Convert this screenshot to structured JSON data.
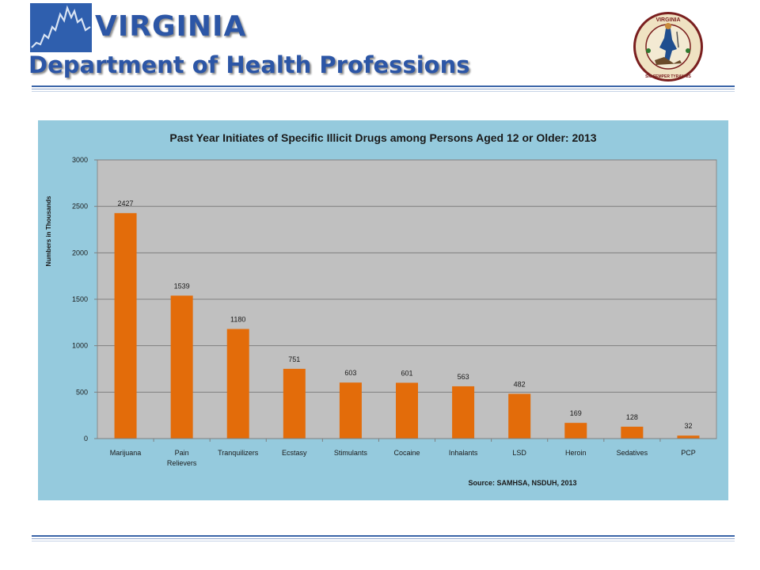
{
  "header": {
    "title_line1": "VIRGINIA",
    "title_line2": "Department of Health Professions",
    "logo_icon": "mountain-line-logo",
    "seal_icon": "virginia-state-seal",
    "seal_top_text": "VIRGINIA",
    "seal_bottom_text": "SIC SEMPER TYRANNIS",
    "brand_color": "#2c56a6"
  },
  "chart_data": {
    "type": "bar",
    "title": "Past Year Initiates of Specific Illicit Drugs among Persons Aged 12 or Older: 2013",
    "xlabel": "",
    "ylabel": "Numbers in Thousands",
    "categories": [
      "Marijuana",
      "Pain Relievers",
      "Tranquilizers",
      "Ecstasy",
      "Stimulants",
      "Cocaine",
      "Inhalants",
      "LSD",
      "Heroin",
      "Sedatives",
      "PCP"
    ],
    "category_lines": [
      [
        "Marijuana"
      ],
      [
        "Pain",
        "Relievers"
      ],
      [
        "Tranquilizers"
      ],
      [
        "Ecstasy"
      ],
      [
        "Stimulants"
      ],
      [
        "Cocaine"
      ],
      [
        "Inhalants"
      ],
      [
        "LSD"
      ],
      [
        "Heroin"
      ],
      [
        "Sedatives"
      ],
      [
        "PCP"
      ]
    ],
    "values": [
      2427,
      1539,
      1180,
      751,
      603,
      601,
      563,
      482,
      169,
      128,
      32
    ],
    "ylim": [
      0,
      3000
    ],
    "yticks": [
      0,
      500,
      1000,
      1500,
      2000,
      2500,
      3000
    ],
    "grid": true,
    "legend": "none",
    "bar_color": "#e36c0a",
    "plot_background": "#c0c0c0",
    "panel_background": "#95cadd",
    "source": "Source:  SAMHSA, NSDUH, 2013"
  }
}
